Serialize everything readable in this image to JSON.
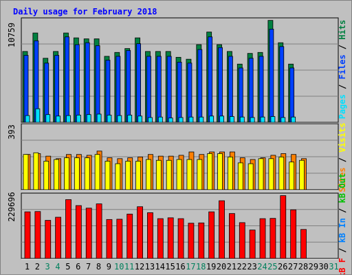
{
  "title": "Daily usage for February 2018",
  "colors": {
    "background": "#C0C0C0",
    "title": "#0000FF",
    "hits": "#008040",
    "files": "#0040FF",
    "pages": "#00E0FF",
    "visits": "#FFFF00",
    "sites": "#FF8000",
    "kbf": "#FF0000",
    "kbin": "#0080FF",
    "kbout": "#00C000",
    "weekend_day": "#00805C",
    "weekday": "#000000"
  },
  "labels": {
    "pages": "Pages",
    "files": "Files",
    "hits": "Hits",
    "sites": "Sites",
    "visits": "Visits",
    "kbf": "kB F",
    "kbin": "kB In",
    "kbout": "kB Out",
    "sep": " / "
  },
  "chart_data": [
    {
      "type": "bar",
      "panel": "hits_files_pages",
      "ymax_label": "10759",
      "ylim": [
        0,
        10759
      ],
      "x": [
        1,
        2,
        3,
        4,
        5,
        6,
        7,
        8,
        9,
        10,
        11,
        12,
        13,
        14,
        15,
        16,
        17,
        18,
        19,
        20,
        21,
        22,
        23,
        24,
        25,
        26,
        27,
        28
      ],
      "series": [
        {
          "name": "Hits",
          "values": [
            7300,
            9200,
            6600,
            7300,
            9200,
            8700,
            8600,
            8600,
            6800,
            7200,
            7600,
            8700,
            7300,
            7300,
            7300,
            6700,
            6500,
            8000,
            9300,
            8000,
            7300,
            6000,
            7100,
            7200,
            10500,
            8200,
            6000,
            0
          ]
        },
        {
          "name": "Files",
          "values": [
            6900,
            8400,
            6100,
            6900,
            8800,
            8000,
            8200,
            7900,
            6400,
            6800,
            7400,
            8100,
            6800,
            6800,
            6800,
            6200,
            6100,
            7500,
            8800,
            7700,
            6800,
            5600,
            6600,
            6800,
            9600,
            7800,
            5600,
            0
          ]
        },
        {
          "name": "Pages",
          "values": [
            700,
            1400,
            800,
            650,
            700,
            750,
            800,
            850,
            750,
            700,
            750,
            650,
            500,
            550,
            450,
            500,
            550,
            550,
            650,
            650,
            600,
            550,
            500,
            550,
            600,
            500,
            550,
            0
          ]
        }
      ]
    },
    {
      "type": "bar",
      "panel": "sites_visits",
      "ymax_label": "393",
      "ylim": [
        0,
        393
      ],
      "x": [
        1,
        2,
        3,
        4,
        5,
        6,
        7,
        8,
        9,
        10,
        11,
        12,
        13,
        14,
        15,
        16,
        17,
        18,
        19,
        20,
        21,
        22,
        23,
        24,
        25,
        26,
        27,
        28
      ],
      "series": [
        {
          "name": "Sites",
          "values": [
            210,
            215,
            200,
            185,
            210,
            210,
            205,
            230,
            190,
            185,
            190,
            195,
            210,
            200,
            200,
            205,
            225,
            210,
            225,
            225,
            225,
            190,
            180,
            190,
            205,
            215,
            210,
            185
          ]
        },
        {
          "name": "Visits",
          "values": [
            210,
            220,
            170,
            180,
            190,
            190,
            190,
            210,
            170,
            155,
            170,
            170,
            180,
            175,
            175,
            180,
            180,
            180,
            215,
            215,
            195,
            160,
            155,
            185,
            185,
            195,
            165,
            175
          ]
        }
      ]
    },
    {
      "type": "bar",
      "panel": "kb",
      "ymax_label": "229696",
      "ylim": [
        0,
        229696
      ],
      "x": [
        1,
        2,
        3,
        4,
        5,
        6,
        7,
        8,
        9,
        10,
        11,
        12,
        13,
        14,
        15,
        16,
        17,
        18,
        19,
        20,
        21,
        22,
        23,
        24,
        25,
        26,
        27,
        28
      ],
      "series": [
        {
          "name": "kB F",
          "values": [
            164000,
            165000,
            134000,
            145000,
            207000,
            186000,
            177000,
            192000,
            137000,
            138000,
            156000,
            182000,
            161000,
            140000,
            143000,
            140000,
            124000,
            125000,
            164000,
            203000,
            158000,
            126000,
            100000,
            140000,
            141000,
            221000,
            171000,
            102000
          ]
        }
      ]
    }
  ],
  "x_labels": [
    {
      "text": "1",
      "weekend": false
    },
    {
      "text": "2",
      "weekend": false
    },
    {
      "text": "3",
      "weekend": true
    },
    {
      "text": "4",
      "weekend": true
    },
    {
      "text": "5",
      "weekend": false
    },
    {
      "text": "6",
      "weekend": false
    },
    {
      "text": "7",
      "weekend": false
    },
    {
      "text": "8",
      "weekend": false
    },
    {
      "text": "9",
      "weekend": false
    },
    {
      "text": "10",
      "weekend": true
    },
    {
      "text": "11",
      "weekend": true
    },
    {
      "text": "12",
      "weekend": false
    },
    {
      "text": "13",
      "weekend": false
    },
    {
      "text": "14",
      "weekend": false
    },
    {
      "text": "15",
      "weekend": false
    },
    {
      "text": "16",
      "weekend": false
    },
    {
      "text": "17",
      "weekend": true
    },
    {
      "text": "18",
      "weekend": true
    },
    {
      "text": "19",
      "weekend": false
    },
    {
      "text": "20",
      "weekend": false
    },
    {
      "text": "21",
      "weekend": false
    },
    {
      "text": "22",
      "weekend": false
    },
    {
      "text": "23",
      "weekend": false
    },
    {
      "text": "24",
      "weekend": true
    },
    {
      "text": "25",
      "weekend": true
    },
    {
      "text": "26",
      "weekend": false
    },
    {
      "text": "27",
      "weekend": false
    },
    {
      "text": "28",
      "weekend": false
    },
    {
      "text": "29",
      "weekend": false
    },
    {
      "text": "30",
      "weekend": false
    },
    {
      "text": "31",
      "weekend": true
    }
  ]
}
